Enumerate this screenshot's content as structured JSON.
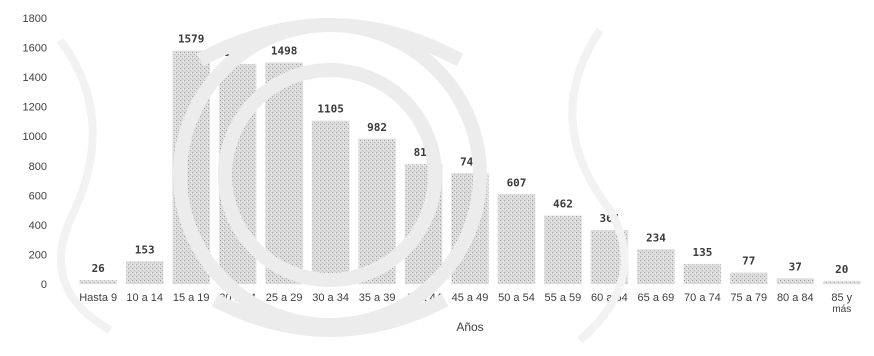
{
  "chart_data": {
    "type": "bar",
    "title": "",
    "xlabel": "Años",
    "ylabel": "",
    "ylim": [
      0,
      1800
    ],
    "yticks": [
      0,
      200,
      400,
      600,
      800,
      1000,
      1200,
      1400,
      1600,
      1800
    ],
    "grid": false,
    "legend": "none",
    "categories": [
      "Hasta 9",
      "10 a 14",
      "15 a 19",
      "20 a 24",
      "25 a 29",
      "30 a 34",
      "35 a 39",
      "40 a 44",
      "45 a 49",
      "50 a 54",
      "55 a 59",
      "60 a 64",
      "65 a 69",
      "70 a 74",
      "75 a 79",
      "80 a 84",
      "85 y más"
    ],
    "values": [
      26,
      153,
      1579,
      1488,
      1498,
      1105,
      982,
      811,
      749,
      607,
      462,
      364,
      234,
      135,
      77,
      37,
      20
    ],
    "bar_color": "#c8c8c8"
  }
}
